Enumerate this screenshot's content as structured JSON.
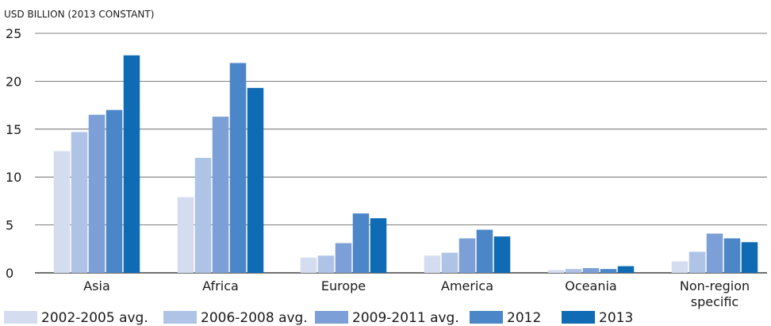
{
  "chart_data": {
    "type": "bar",
    "unit_label": "USD BILLION (2013 CONSTANT)",
    "title": "",
    "xlabel": "",
    "ylabel": "",
    "categories": [
      [
        "Asia"
      ],
      [
        "Africa"
      ],
      [
        "Europe"
      ],
      [
        "America"
      ],
      [
        "Oceania"
      ],
      [
        "Non-region",
        "specific"
      ]
    ],
    "ylim": [
      0,
      25
    ],
    "yticks": [
      0,
      5,
      10,
      15,
      20,
      25
    ],
    "grid": true,
    "legend_position": "bottom",
    "series": [
      {
        "name": "2002-2005 avg.",
        "color": "#d4dcef",
        "values": [
          12.7,
          7.9,
          1.6,
          1.8,
          0.3,
          1.2
        ]
      },
      {
        "name": "2006-2008 avg.",
        "color": "#aec3e6",
        "values": [
          14.7,
          12.0,
          1.8,
          2.1,
          0.4,
          2.2
        ]
      },
      {
        "name": "2009-2011 avg.",
        "color": "#7b9fd6",
        "values": [
          16.5,
          16.3,
          3.1,
          3.6,
          0.5,
          4.1
        ]
      },
      {
        "name": "2012",
        "color": "#4b86c8",
        "values": [
          17.0,
          21.9,
          6.2,
          4.5,
          0.4,
          3.6
        ]
      },
      {
        "name": "2013",
        "color": "#0f6bb4",
        "values": [
          22.7,
          19.3,
          5.7,
          3.8,
          0.7,
          3.2
        ]
      }
    ]
  }
}
